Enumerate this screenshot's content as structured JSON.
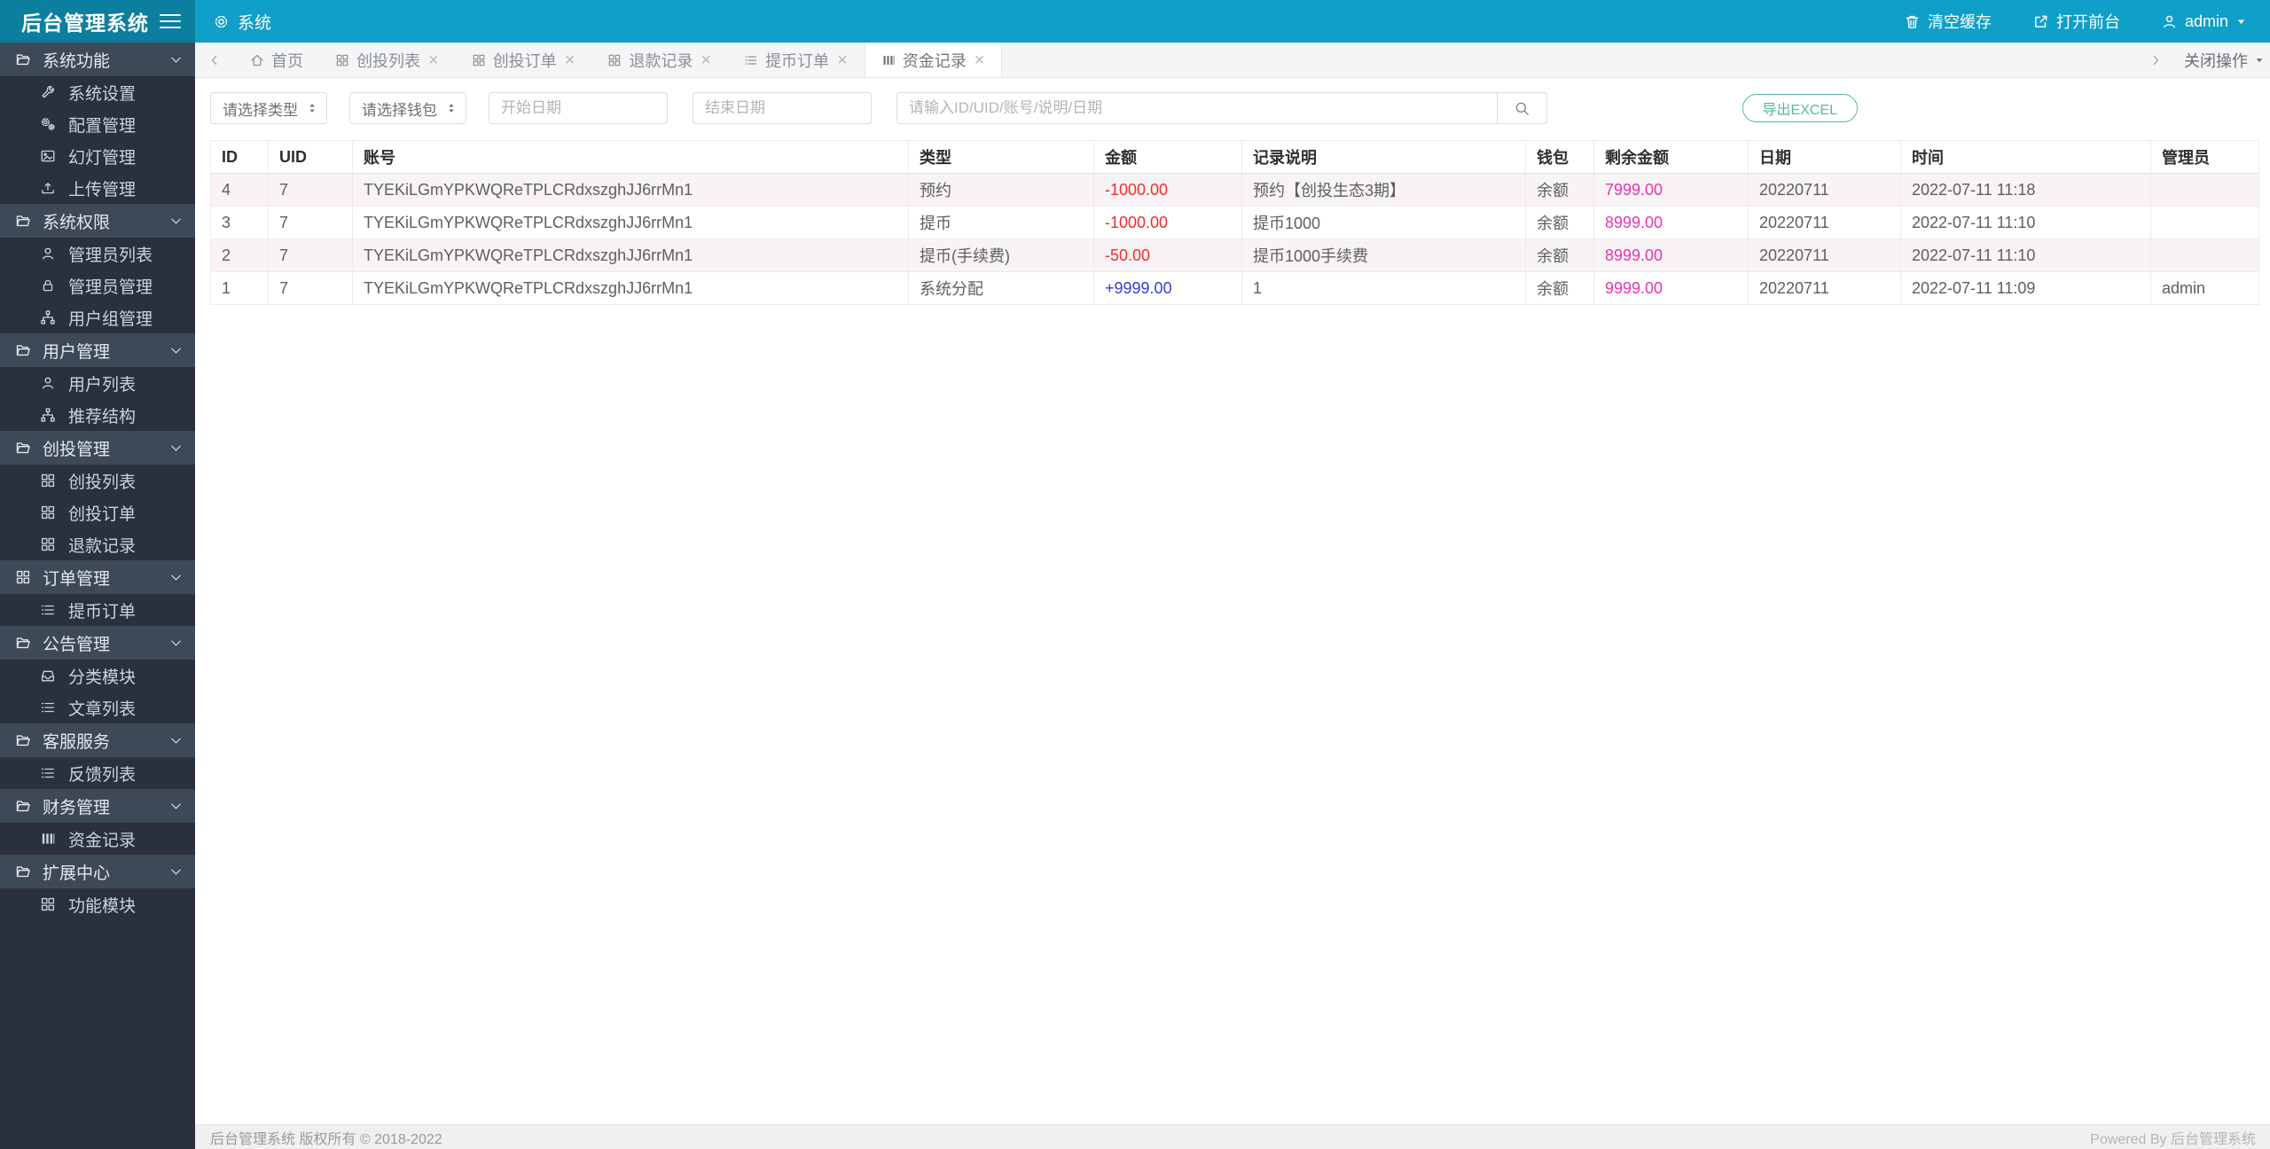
{
  "app": {
    "title": "后台管理系统"
  },
  "topbar": {
    "module": {
      "label": "系统",
      "icon": "gear-icon"
    },
    "actions": [
      {
        "label": "清空缓存",
        "icon": "trash-icon"
      },
      {
        "label": "打开前台",
        "icon": "external-link-icon"
      }
    ],
    "user": {
      "name": "admin",
      "icon": "user-icon"
    }
  },
  "sidebar": {
    "groups": [
      {
        "label": "系统功能",
        "icon": "folder-open-icon",
        "items": [
          {
            "label": "系统设置",
            "icon": "wrench-icon"
          },
          {
            "label": "配置管理",
            "icon": "gears-icon"
          },
          {
            "label": "幻灯管理",
            "icon": "image-icon"
          },
          {
            "label": "上传管理",
            "icon": "upload-icon"
          }
        ]
      },
      {
        "label": "系统权限",
        "icon": "folder-open-icon",
        "items": [
          {
            "label": "管理员列表",
            "icon": "user-icon"
          },
          {
            "label": "管理员管理",
            "icon": "lock-icon"
          },
          {
            "label": "用户组管理",
            "icon": "sitemap-icon"
          }
        ]
      },
      {
        "label": "用户管理",
        "icon": "folder-open-icon",
        "items": [
          {
            "label": "用户列表",
            "icon": "user-icon"
          },
          {
            "label": "推荐结构",
            "icon": "sitemap-icon"
          }
        ]
      },
      {
        "label": "创投管理",
        "icon": "folder-open-icon",
        "items": [
          {
            "label": "创投列表",
            "icon": "grid-icon"
          },
          {
            "label": "创投订单",
            "icon": "grid-icon"
          },
          {
            "label": "退款记录",
            "icon": "grid-icon"
          }
        ]
      },
      {
        "label": "订单管理",
        "icon": "grid-icon",
        "items": [
          {
            "label": "提币订单",
            "icon": "list-icon"
          }
        ]
      },
      {
        "label": "公告管理",
        "icon": "folder-open-icon",
        "items": [
          {
            "label": "分类模块",
            "icon": "inbox-icon"
          },
          {
            "label": "文章列表",
            "icon": "list-icon"
          }
        ]
      },
      {
        "label": "客服服务",
        "icon": "folder-open-icon",
        "items": [
          {
            "label": "反馈列表",
            "icon": "list-icon"
          }
        ]
      },
      {
        "label": "财务管理",
        "icon": "folder-open-icon",
        "items": [
          {
            "label": "资金记录",
            "icon": "bars-icon"
          }
        ]
      },
      {
        "label": "扩展中心",
        "icon": "folder-open-icon",
        "items": [
          {
            "label": "功能模块",
            "icon": "grid-icon"
          }
        ]
      }
    ]
  },
  "tabs": {
    "items": [
      {
        "label": "首页",
        "icon": "home-icon",
        "closable": false,
        "active": false
      },
      {
        "label": "创投列表",
        "icon": "grid-icon",
        "closable": true,
        "active": false
      },
      {
        "label": "创投订单",
        "icon": "grid-icon",
        "closable": true,
        "active": false
      },
      {
        "label": "退款记录",
        "icon": "grid-icon",
        "closable": true,
        "active": false
      },
      {
        "label": "提币订单",
        "icon": "list-icon",
        "closable": true,
        "active": false
      },
      {
        "label": "资金记录",
        "icon": "bars-icon",
        "closable": true,
        "active": true
      }
    ],
    "close_menu_label": "关闭操作"
  },
  "filters": {
    "type_select": "请选择类型",
    "wallet_select": "请选择钱包",
    "start_date_placeholder": "开始日期",
    "end_date_placeholder": "结束日期",
    "search_placeholder": "请输入ID/UID/账号/说明/日期",
    "export_label": "导出EXCEL"
  },
  "table": {
    "columns": [
      "ID",
      "UID",
      "账号",
      "类型",
      "金额",
      "记录说明",
      "钱包",
      "剩余金额",
      "日期",
      "时间",
      "管理员"
    ],
    "rows": [
      {
        "id": "4",
        "uid": "7",
        "account": "TYEKiLGmYPKWQReTPLCRdxszghJJ6rrMn1",
        "type": "预约",
        "amount": "-1000.00",
        "desc": "预约【创投生态3期】",
        "wallet": "余额",
        "balance": "7999.00",
        "date": "20220711",
        "time": "2022-07-11 11:18",
        "admin": ""
      },
      {
        "id": "3",
        "uid": "7",
        "account": "TYEKiLGmYPKWQReTPLCRdxszghJJ6rrMn1",
        "type": "提币",
        "amount": "-1000.00",
        "desc": "提币1000",
        "wallet": "余额",
        "balance": "8999.00",
        "date": "20220711",
        "time": "2022-07-11 11:10",
        "admin": ""
      },
      {
        "id": "2",
        "uid": "7",
        "account": "TYEKiLGmYPKWQReTPLCRdxszghJJ6rrMn1",
        "type": "提币(手续费)",
        "amount": "-50.00",
        "desc": "提币1000手续费",
        "wallet": "余额",
        "balance": "8999.00",
        "date": "20220711",
        "time": "2022-07-11 11:10",
        "admin": ""
      },
      {
        "id": "1",
        "uid": "7",
        "account": "TYEKiLGmYPKWQReTPLCRdxszghJJ6rrMn1",
        "type": "系统分配",
        "amount": "+9999.00",
        "desc": "1",
        "wallet": "余额",
        "balance": "9999.00",
        "date": "20220711",
        "time": "2022-07-11 11:09",
        "admin": "admin"
      }
    ]
  },
  "footer": {
    "left": "后台管理系统 版权所有 © 2018-2022",
    "right": "Powered By 后台管理系统"
  },
  "colors": {
    "header": "#0f9fc9",
    "logo_block": "#0c7f9e",
    "sidebar": "#2a313c",
    "sidebar_group": "#3e4957",
    "negative": "#f42a2a",
    "positive": "#3939d6",
    "balance": "#e833b4",
    "export_green": "#58bb92"
  }
}
